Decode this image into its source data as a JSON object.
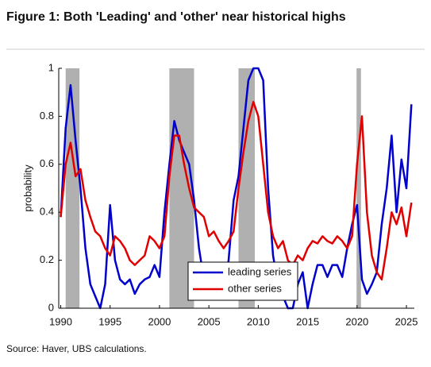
{
  "chart_data": {
    "type": "line",
    "title": "Figure 1: Both 'Leading' and 'other' near historical highs",
    "ylabel": "probability",
    "note": "Source: Haver, UBS calculations.",
    "x": [
      1990,
      1990.5,
      1991,
      1991.5,
      1992,
      1992.5,
      1993,
      1993.5,
      1994,
      1994.5,
      1995,
      1995.5,
      1996,
      1996.5,
      1997,
      1997.5,
      1998,
      1998.5,
      1999,
      1999.5,
      2000,
      2000.5,
      2001,
      2001.5,
      2002,
      2002.5,
      2003,
      2003.5,
      2004,
      2004.5,
      2005,
      2005.5,
      2006,
      2006.5,
      2007,
      2007.5,
      2008,
      2008.5,
      2009,
      2009.5,
      2010,
      2010.5,
      2011,
      2011.5,
      2012,
      2012.5,
      2013,
      2013.5,
      2014,
      2014.5,
      2015,
      2015.5,
      2016,
      2016.5,
      2017,
      2017.5,
      2018,
      2018.5,
      2019,
      2019.5,
      2020,
      2020.5,
      2021,
      2021.5,
      2022,
      2022.5,
      2023,
      2023.5,
      2024,
      2024.5,
      2025,
      2025.5
    ],
    "series": [
      {
        "name": "leading series",
        "color": "#0000cc",
        "values": [
          0.38,
          0.75,
          0.93,
          0.7,
          0.5,
          0.25,
          0.1,
          0.05,
          0,
          0.1,
          0.43,
          0.2,
          0.12,
          0.1,
          0.12,
          0.06,
          0.1,
          0.12,
          0.13,
          0.18,
          0.13,
          0.4,
          0.6,
          0.78,
          0.7,
          0.65,
          0.6,
          0.45,
          0.25,
          0.12,
          0.15,
          0.18,
          0.15,
          0.05,
          0.2,
          0.45,
          0.55,
          0.75,
          0.95,
          1,
          1,
          0.95,
          0.5,
          0.22,
          0.1,
          0.05,
          0,
          0,
          0.1,
          0.15,
          0,
          0.1,
          0.18,
          0.18,
          0.13,
          0.18,
          0.18,
          0.13,
          0.25,
          0.35,
          0.43,
          0.12,
          0.06,
          0.1,
          0.15,
          0.35,
          0.5,
          0.72,
          0.4,
          0.62,
          0.5,
          0.85
        ]
      },
      {
        "name": "other series",
        "color": "#e00000",
        "values": [
          0.38,
          0.6,
          0.69,
          0.55,
          0.58,
          0.45,
          0.38,
          0.32,
          0.3,
          0.25,
          0.22,
          0.3,
          0.28,
          0.25,
          0.2,
          0.18,
          0.2,
          0.22,
          0.3,
          0.28,
          0.25,
          0.3,
          0.55,
          0.72,
          0.72,
          0.6,
          0.5,
          0.42,
          0.4,
          0.38,
          0.3,
          0.32,
          0.28,
          0.25,
          0.28,
          0.32,
          0.5,
          0.65,
          0.78,
          0.86,
          0.8,
          0.6,
          0.4,
          0.3,
          0.25,
          0.28,
          0.2,
          0.18,
          0.22,
          0.2,
          0.25,
          0.28,
          0.27,
          0.3,
          0.28,
          0.27,
          0.3,
          0.28,
          0.25,
          0.3,
          0.6,
          0.8,
          0.4,
          0.22,
          0.15,
          0.12,
          0.25,
          0.4,
          0.35,
          0.42,
          0.3,
          0.44
        ]
      }
    ],
    "shaded_periods": [
      [
        1990.5,
        1991.9
      ],
      [
        2001,
        2003.5
      ],
      [
        2008,
        2009.65
      ],
      [
        2019.95,
        2020.4
      ]
    ],
    "shade_color": "#b0b0b0",
    "xlim": [
      1989.8,
      2025.8
    ],
    "xticks": [
      1990,
      1995,
      2000,
      2005,
      2010,
      2015,
      2020,
      2025
    ],
    "ylim": [
      0,
      1
    ],
    "yticks": [
      0,
      0.2,
      0.4,
      0.6,
      0.8,
      1
    ],
    "grid": false,
    "legend": "lower center"
  }
}
